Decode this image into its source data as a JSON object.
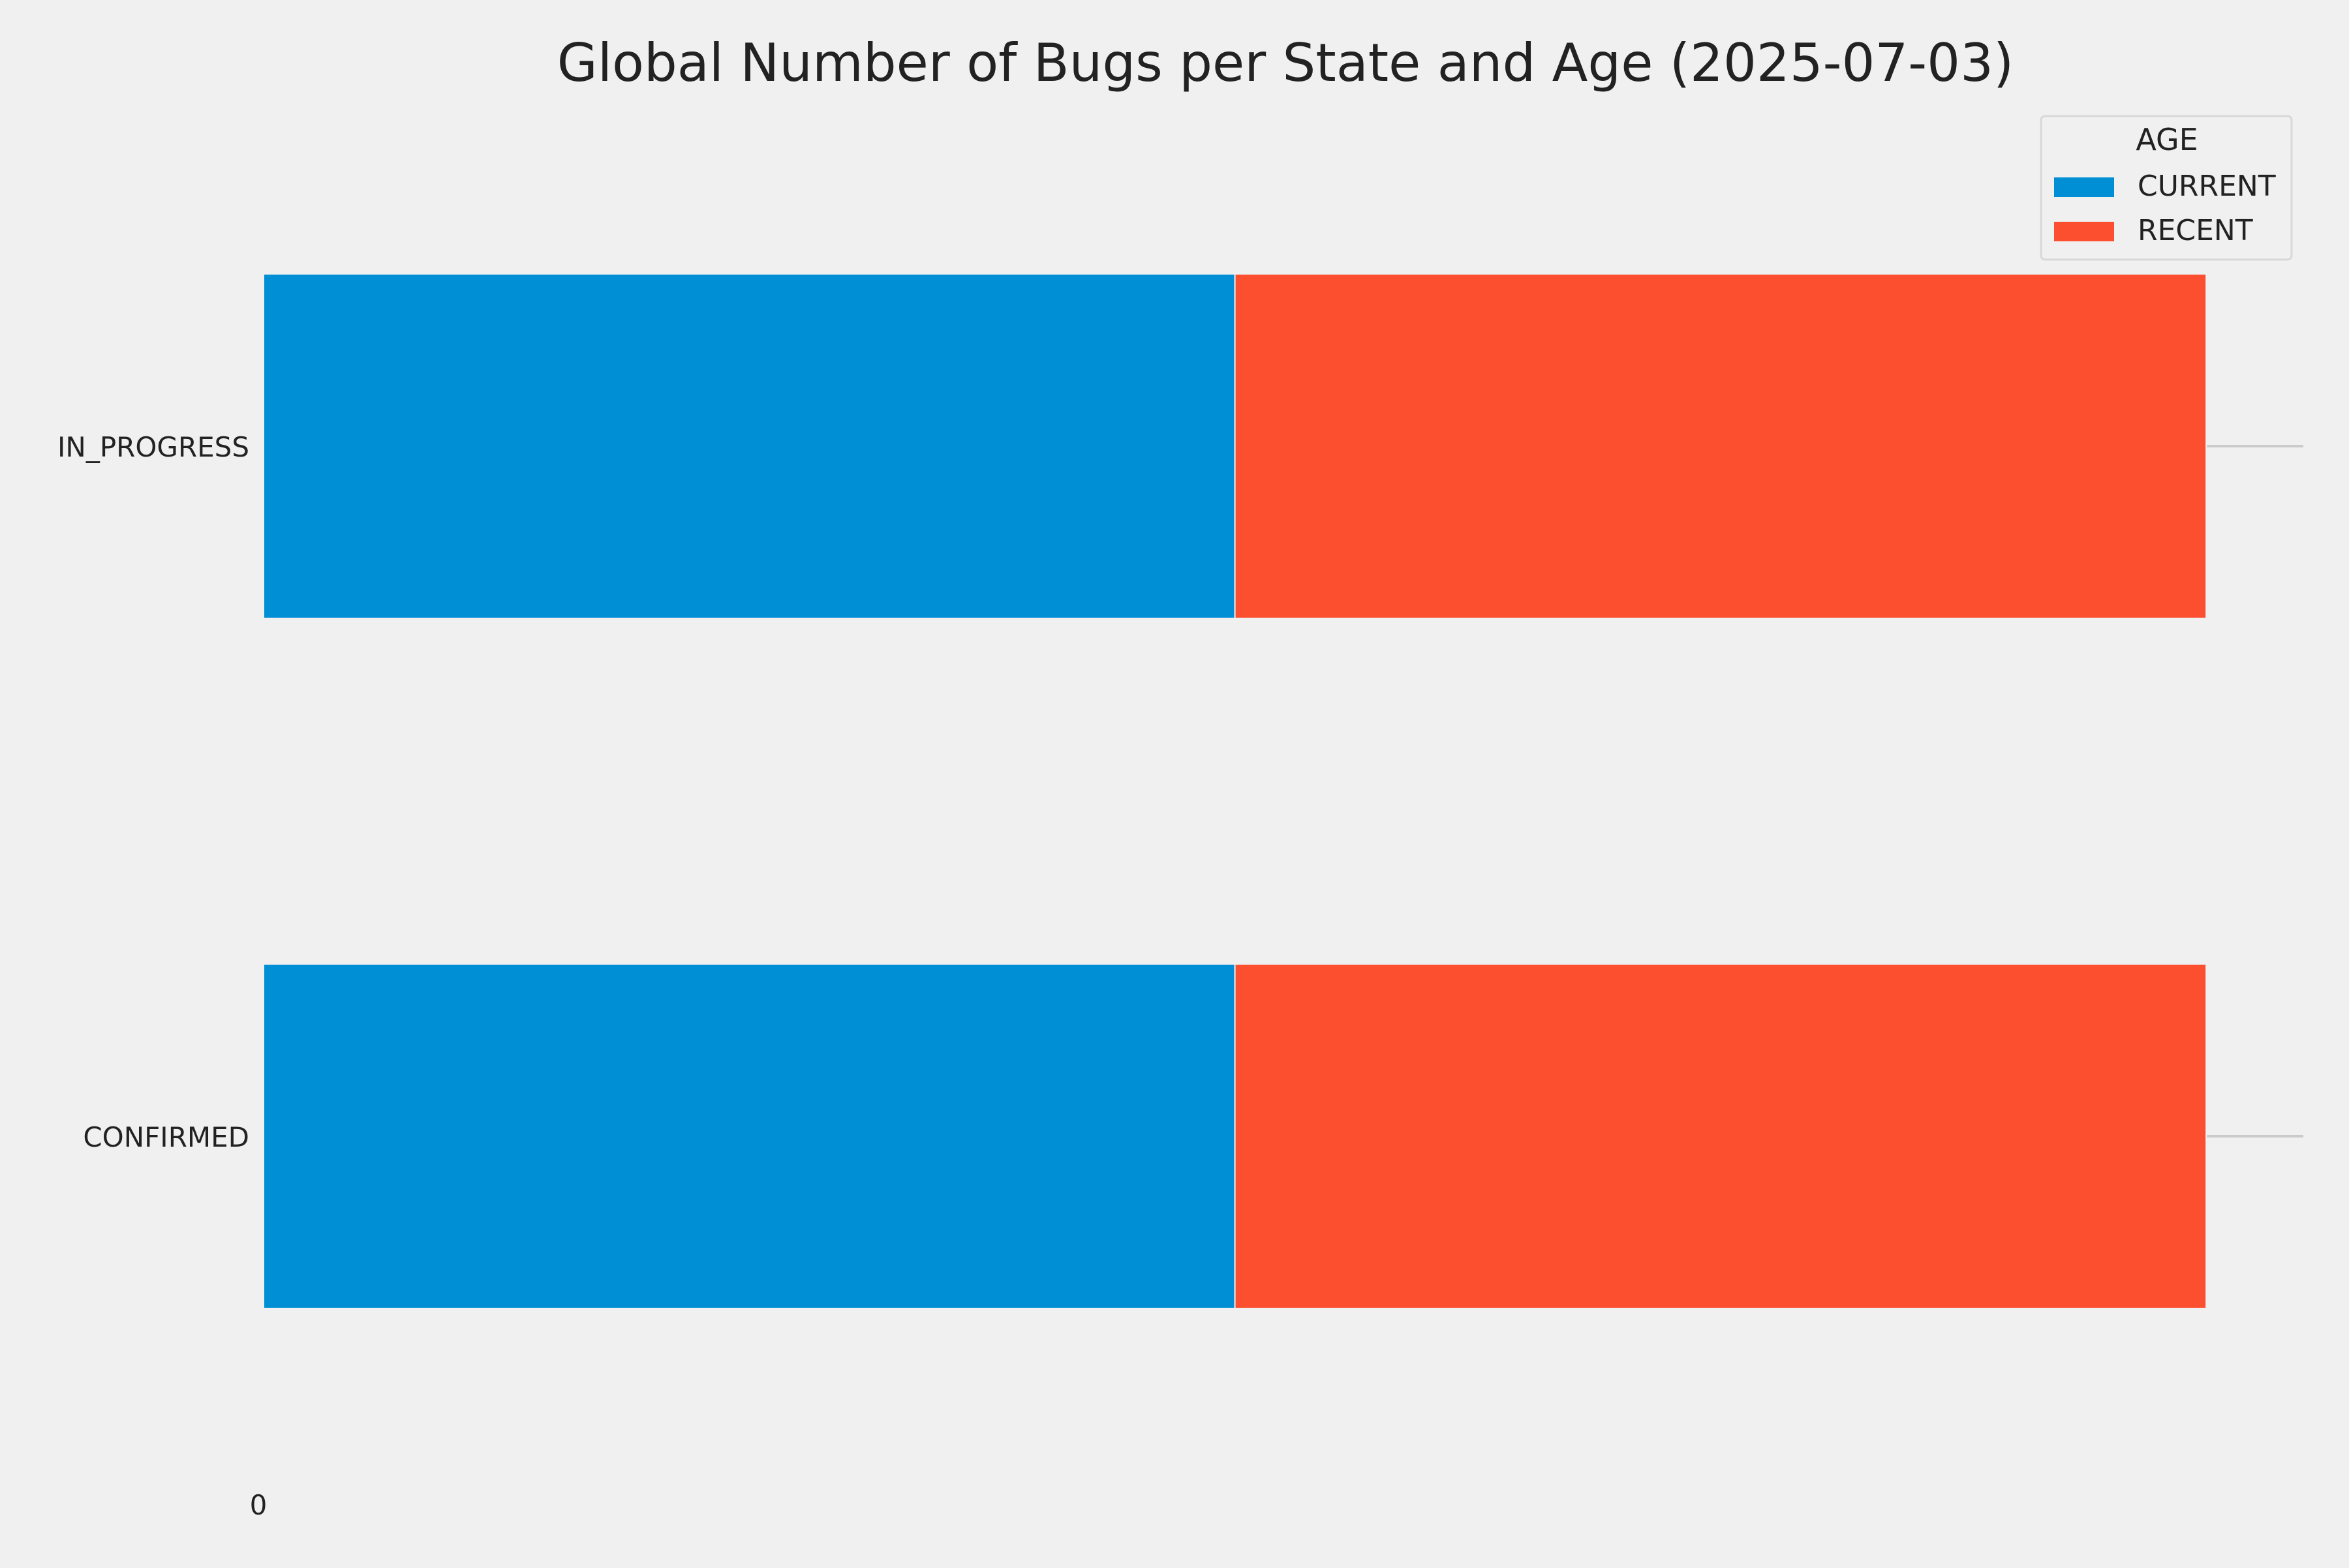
{
  "chart_data": {
    "type": "bar",
    "orientation": "horizontal",
    "stacked": true,
    "title": "Global Number of Bugs per State and Age (2025-07-03)",
    "xlabel": "",
    "ylabel": "",
    "categories": [
      "IN_PROGRESS",
      "CONFIRMED"
    ],
    "series": [
      {
        "name": "CURRENT",
        "color": "#008fd5",
        "values": [
          1,
          1
        ]
      },
      {
        "name": "RECENT",
        "color": "#fc4f30",
        "values": [
          1,
          1
        ]
      }
    ],
    "xlim": [
      0,
      2.1
    ],
    "x_ticks": [
      "0"
    ],
    "legend": {
      "title": "AGE",
      "position": "top-right"
    },
    "grid": true,
    "colors": {
      "background": "#f0f0f0",
      "grid": "#cbcbcb",
      "text": "#222222"
    }
  }
}
